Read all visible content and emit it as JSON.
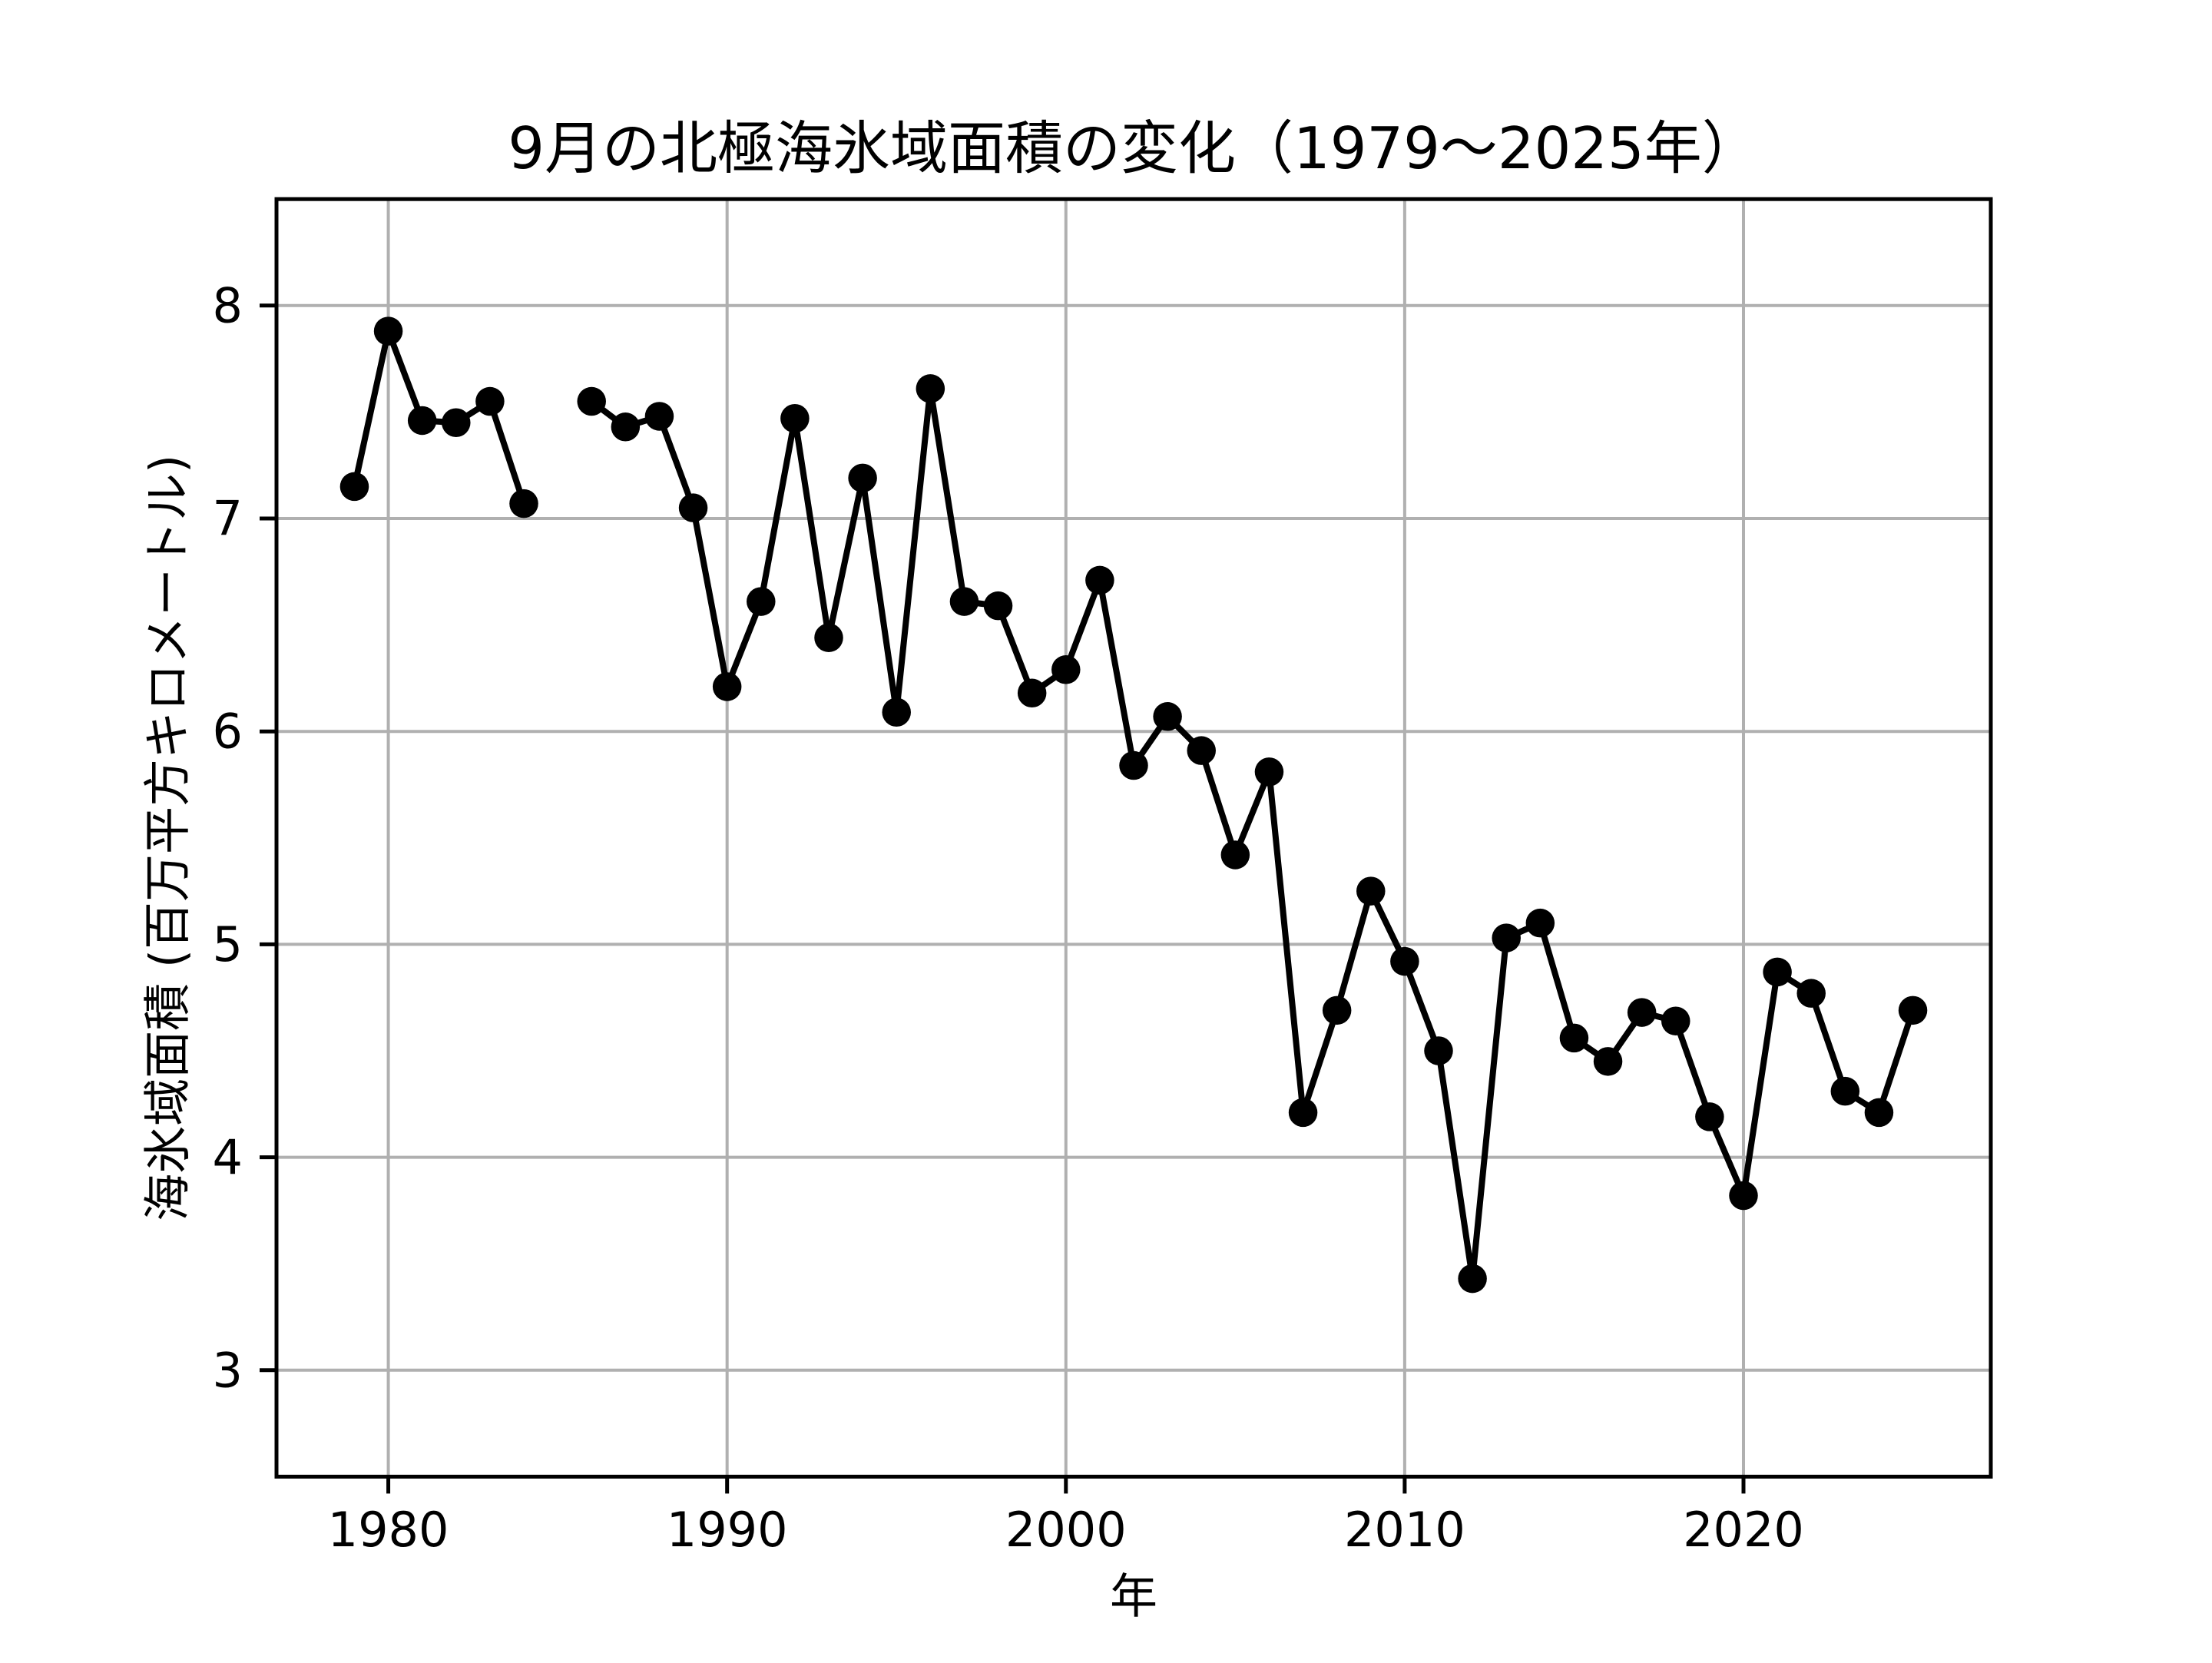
{
  "chart_data": {
    "type": "line",
    "title": "9月の北極海氷域面積の変化（1979～2025年）",
    "xlabel": "年",
    "ylabel": "海氷域面積 (百万平方キロメートル)",
    "x": [
      1979,
      1980,
      1981,
      1982,
      1983,
      1984,
      1985,
      1986,
      1987,
      1988,
      1989,
      1990,
      1991,
      1992,
      1993,
      1994,
      1995,
      1996,
      1997,
      1998,
      1999,
      2000,
      2001,
      2002,
      2003,
      2004,
      2005,
      2006,
      2007,
      2008,
      2009,
      2010,
      2011,
      2012,
      2013,
      2014,
      2015,
      2016,
      2017,
      2018,
      2019,
      2020,
      2021,
      2022,
      2023,
      2024,
      2025
    ],
    "values": [
      7.15,
      7.88,
      7.46,
      7.45,
      7.55,
      7.07,
      null,
      7.55,
      7.43,
      7.48,
      7.05,
      6.21,
      6.61,
      7.47,
      6.44,
      7.19,
      6.09,
      7.61,
      6.61,
      6.59,
      6.18,
      6.29,
      6.71,
      5.84,
      6.07,
      5.91,
      5.42,
      5.81,
      4.21,
      4.69,
      5.25,
      4.92,
      4.5,
      3.43,
      5.03,
      5.1,
      4.56,
      4.45,
      4.68,
      4.64,
      4.19,
      3.82,
      4.87,
      4.77,
      4.31,
      4.21,
      4.69
    ],
    "xlim": [
      1976.7,
      2027.3
    ],
    "ylim": [
      2.5,
      8.5
    ],
    "xticks": [
      1980,
      1990,
      2000,
      2010,
      2020
    ],
    "yticks": [
      3,
      4,
      5,
      6,
      7,
      8
    ],
    "grid": true,
    "marker": "circle",
    "legend": "none",
    "line_color": "#000000",
    "grid_color": "#b0b0b0",
    "background": "#ffffff"
  }
}
